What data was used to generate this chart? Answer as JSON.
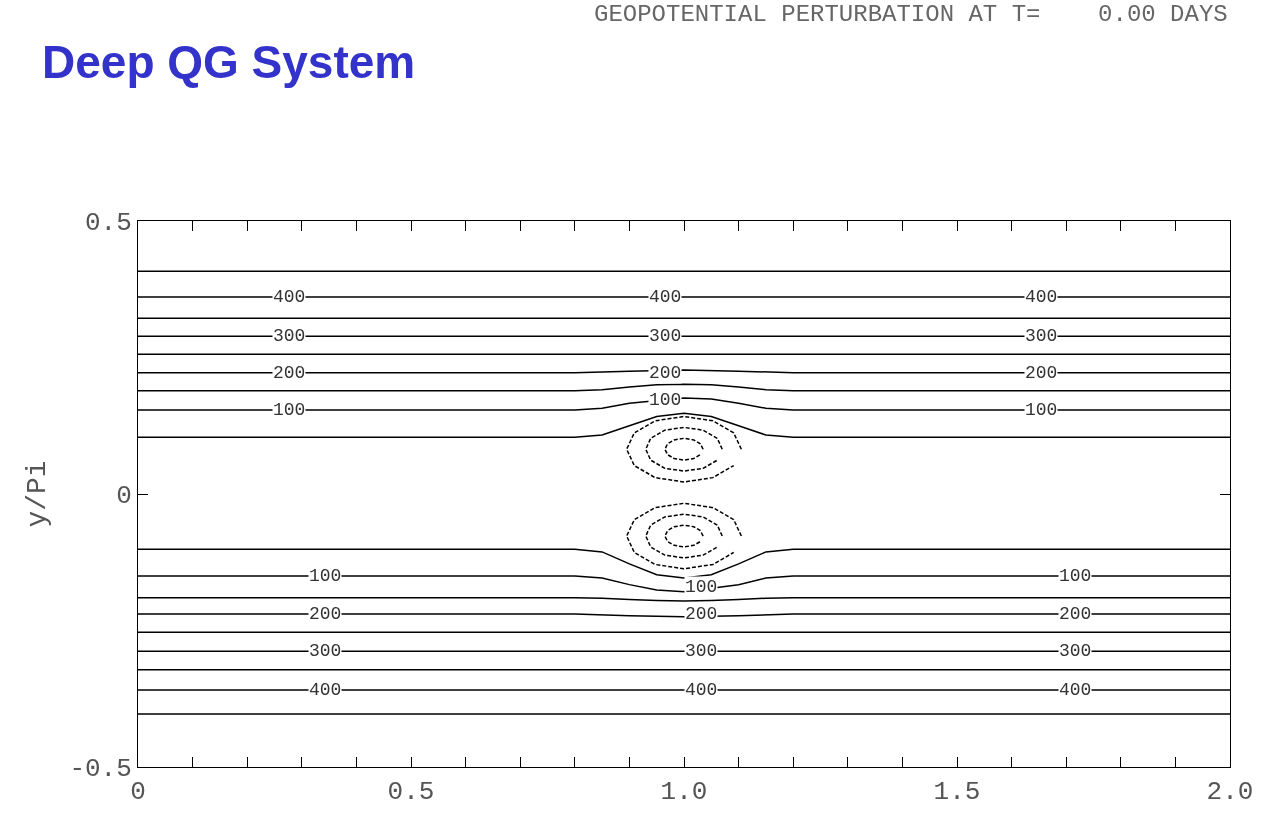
{
  "chart_data": {
    "type": "line",
    "title": "Deep QG System",
    "subtitle": "GEOPOTENTIAL PERTURBATION AT T=    0.00 DAYS",
    "ylabel": "y/Pi",
    "xlim": [
      0,
      2
    ],
    "ylim": [
      -0.5,
      0.5
    ],
    "xticks": [
      0,
      {
        "value": 0.1,
        "label": null
      },
      {
        "value": 0.2,
        "label": null
      },
      {
        "value": 0.3,
        "label": null
      },
      {
        "value": 0.4,
        "label": null
      },
      0.5,
      {
        "value": 0.6,
        "label": null
      },
      {
        "value": 0.7,
        "label": null
      },
      {
        "value": 0.8,
        "label": null
      },
      {
        "value": 0.9,
        "label": null
      },
      {
        "value": 1.0,
        "label": "1.0"
      },
      {
        "value": 1.1,
        "label": null
      },
      {
        "value": 1.2,
        "label": null
      },
      {
        "value": 1.3,
        "label": null
      },
      {
        "value": 1.4,
        "label": null
      },
      1.5,
      {
        "value": 1.6,
        "label": null
      },
      {
        "value": 1.7,
        "label": null
      },
      {
        "value": 1.8,
        "label": null
      },
      {
        "value": 1.9,
        "label": null
      },
      {
        "value": 2.0,
        "label": "2.0"
      }
    ],
    "yticks": [
      -0.5,
      0,
      0.5
    ],
    "marker": "none",
    "series": [
      {
        "color": "#000000",
        "line_style": "solid",
        "x": [
          0,
          2
        ],
        "values": [
          0.408,
          0.408
        ]
      },
      {
        "color": "#000000",
        "line_style": "solid",
        "x": [
          0,
          2
        ],
        "values": [
          0.361,
          0.361
        ]
      },
      {
        "color": "#000000",
        "line_style": "solid",
        "x": [
          0,
          2
        ],
        "values": [
          0.322,
          0.322
        ]
      },
      {
        "color": "#000000",
        "line_style": "solid",
        "x": [
          0,
          2
        ],
        "values": [
          0.289,
          0.289
        ]
      },
      {
        "color": "#000000",
        "line_style": "solid",
        "x": [
          0,
          2
        ],
        "values": [
          0.256,
          0.256
        ]
      },
      {
        "color": "#000000",
        "line_style": "solid",
        "x": [
          0,
          0.8,
          0.9,
          1.0,
          1.1,
          1.2,
          2
        ],
        "values": [
          0.222,
          0.222,
          0.225,
          0.227,
          0.225,
          0.222,
          0.222
        ]
      },
      {
        "color": "#000000",
        "line_style": "solid",
        "x": [
          0,
          0.8,
          0.85,
          0.9,
          0.95,
          1.0,
          1.05,
          1.1,
          1.15,
          1.2,
          2
        ],
        "values": [
          0.189,
          0.189,
          0.191,
          0.196,
          0.2,
          0.201,
          0.2,
          0.196,
          0.191,
          0.189,
          0.189
        ]
      },
      {
        "color": "#000000",
        "line_style": "solid",
        "x": [
          0,
          0.8,
          0.85,
          0.9,
          1.0,
          1.05,
          1.1,
          1.15,
          1.2,
          2
        ],
        "values": [
          0.154,
          0.154,
          0.157,
          0.166,
          0.176,
          0.174,
          0.166,
          0.157,
          0.154,
          0.154
        ]
      },
      {
        "color": "#000000",
        "line_style": "solid",
        "x": [
          0,
          0.8,
          0.85,
          0.9,
          0.95,
          1.0,
          1.05,
          1.1,
          1.15,
          1.2,
          2
        ],
        "values": [
          0.104,
          0.104,
          0.108,
          0.125,
          0.142,
          0.148,
          0.142,
          0.125,
          0.108,
          0.104,
          0.104
        ]
      },
      {
        "color": "#000000",
        "line_style": "solid",
        "x": [
          0,
          0.8,
          0.85,
          0.9,
          0.95,
          1.0,
          1.05,
          1.1,
          1.15,
          1.2,
          2
        ],
        "values": [
          -0.101,
          -0.101,
          -0.106,
          -0.128,
          -0.148,
          -0.154,
          -0.148,
          -0.128,
          -0.106,
          -0.101,
          -0.101
        ]
      },
      {
        "color": "#000000",
        "line_style": "solid",
        "x": [
          0,
          0.8,
          0.85,
          0.9,
          0.95,
          1.0,
          1.1,
          1.15,
          1.2,
          2
        ],
        "values": [
          -0.15,
          -0.15,
          -0.154,
          -0.166,
          -0.176,
          -0.179,
          -0.166,
          -0.154,
          -0.15,
          -0.15
        ]
      },
      {
        "color": "#000000",
        "line_style": "solid",
        "x": [
          0,
          0.8,
          0.85,
          0.9,
          0.95,
          1.0,
          1.05,
          1.1,
          1.15,
          1.2,
          2
        ],
        "values": [
          -0.19,
          -0.19,
          -0.191,
          -0.193,
          -0.195,
          -0.196,
          -0.195,
          -0.193,
          -0.191,
          -0.19,
          -0.19
        ]
      },
      {
        "color": "#000000",
        "line_style": "solid",
        "x": [
          0,
          0.8,
          0.9,
          1.0,
          1.1,
          1.2,
          2
        ],
        "values": [
          -0.22,
          -0.22,
          -0.223,
          -0.225,
          -0.223,
          -0.22,
          -0.22
        ]
      },
      {
        "color": "#000000",
        "line_style": "solid",
        "x": [
          0,
          2
        ],
        "values": [
          -0.253,
          -0.253
        ]
      },
      {
        "color": "#000000",
        "line_style": "solid",
        "x": [
          0,
          2
        ],
        "values": [
          -0.288,
          -0.288
        ]
      },
      {
        "color": "#000000",
        "line_style": "solid",
        "x": [
          0,
          2
        ],
        "values": [
          -0.322,
          -0.322
        ]
      },
      {
        "color": "#000000",
        "line_style": "solid",
        "x": [
          0,
          2
        ],
        "values": [
          -0.359,
          -0.359
        ]
      },
      {
        "color": "#000000",
        "line_style": "solid",
        "x": [
          0,
          2
        ],
        "values": [
          -0.403,
          -0.403
        ]
      },
      {
        "color": "#000000",
        "line_style": "dashed",
        "x": [
          1.105,
          1.091,
          1.053,
          1.0,
          0.947,
          0.909,
          0.895,
          0.909,
          0.947,
          1.0,
          1.053,
          1.091
        ],
        "values": [
          0.082,
          0.112,
          0.134,
          0.142,
          0.134,
          0.112,
          0.082,
          0.052,
          0.03,
          0.022,
          0.03,
          0.052
        ]
      },
      {
        "color": "#000000",
        "line_style": "dashed",
        "x": [
          1.07,
          1.061,
          1.035,
          1.0,
          0.965,
          0.939,
          0.93,
          0.939,
          0.965,
          1.0,
          1.035,
          1.061
        ],
        "values": [
          0.082,
          0.102,
          0.117,
          0.122,
          0.117,
          0.102,
          0.082,
          0.062,
          0.047,
          0.042,
          0.047,
          0.062
        ]
      },
      {
        "color": "#000000",
        "line_style": "dashed",
        "x": [
          1.035,
          1.03,
          1.018,
          1.0,
          0.982,
          0.97,
          0.965,
          0.97,
          0.982,
          1.0,
          1.018,
          1.03
        ],
        "values": [
          0.082,
          0.092,
          0.099,
          0.102,
          0.099,
          0.092,
          0.082,
          0.072,
          0.065,
          0.062,
          0.065,
          0.072
        ]
      },
      {
        "color": "#000000",
        "line_style": "dashed",
        "x": [
          1.105,
          1.091,
          1.053,
          1.0,
          0.947,
          0.909,
          0.895,
          0.909,
          0.947,
          1.0,
          1.053,
          1.091
        ],
        "values": [
          -0.077,
          -0.047,
          -0.025,
          -0.017,
          -0.025,
          -0.047,
          -0.077,
          -0.107,
          -0.129,
          -0.137,
          -0.129,
          -0.107
        ]
      },
      {
        "color": "#000000",
        "line_style": "dashed",
        "x": [
          1.07,
          1.061,
          1.035,
          1.0,
          0.965,
          0.939,
          0.93,
          0.939,
          0.965,
          1.0,
          1.035,
          1.061
        ],
        "values": [
          -0.077,
          -0.057,
          -0.042,
          -0.037,
          -0.042,
          -0.057,
          -0.077,
          -0.097,
          -0.112,
          -0.117,
          -0.112,
          -0.097
        ]
      },
      {
        "color": "#000000",
        "line_style": "dashed",
        "x": [
          1.035,
          1.03,
          1.018,
          1.0,
          0.982,
          0.97,
          0.965,
          0.97,
          0.982,
          1.0,
          1.018,
          1.03
        ],
        "values": [
          -0.077,
          -0.067,
          -0.06,
          -0.057,
          -0.06,
          -0.067,
          -0.077,
          -0.087,
          -0.094,
          -0.097,
          -0.094,
          -0.087
        ]
      }
    ],
    "annotations": [
      {
        "text": "400",
        "x": 0.276,
        "y": 0.361
      },
      {
        "text": "400",
        "x": 0.965,
        "y": 0.361
      },
      {
        "text": "400",
        "x": 1.654,
        "y": 0.361
      },
      {
        "text": "300",
        "x": 0.276,
        "y": 0.289
      },
      {
        "text": "300",
        "x": 0.965,
        "y": 0.289
      },
      {
        "text": "300",
        "x": 1.654,
        "y": 0.289
      },
      {
        "text": "200",
        "x": 0.276,
        "y": 0.222
      },
      {
        "text": "200",
        "x": 0.965,
        "y": 0.222
      },
      {
        "text": "200",
        "x": 1.654,
        "y": 0.222
      },
      {
        "text": "100",
        "x": 0.276,
        "y": 0.154
      },
      {
        "text": "100",
        "x": 0.965,
        "y": 0.172
      },
      {
        "text": "100",
        "x": 1.654,
        "y": 0.154
      },
      {
        "text": "100",
        "x": 0.342,
        "y": -0.15
      },
      {
        "text": "100",
        "x": 1.031,
        "y": -0.17
      },
      {
        "text": "100",
        "x": 1.716,
        "y": -0.15
      },
      {
        "text": "200",
        "x": 0.342,
        "y": -0.22
      },
      {
        "text": "200",
        "x": 1.031,
        "y": -0.22
      },
      {
        "text": "200",
        "x": 1.716,
        "y": -0.22
      },
      {
        "text": "300",
        "x": 0.342,
        "y": -0.288
      },
      {
        "text": "300",
        "x": 1.031,
        "y": -0.288
      },
      {
        "text": "300",
        "x": 1.716,
        "y": -0.288
      },
      {
        "text": "400",
        "x": 0.342,
        "y": -0.359
      },
      {
        "text": "400",
        "x": 1.031,
        "y": -0.359
      },
      {
        "text": "400",
        "x": 1.716,
        "y": -0.359
      }
    ]
  }
}
